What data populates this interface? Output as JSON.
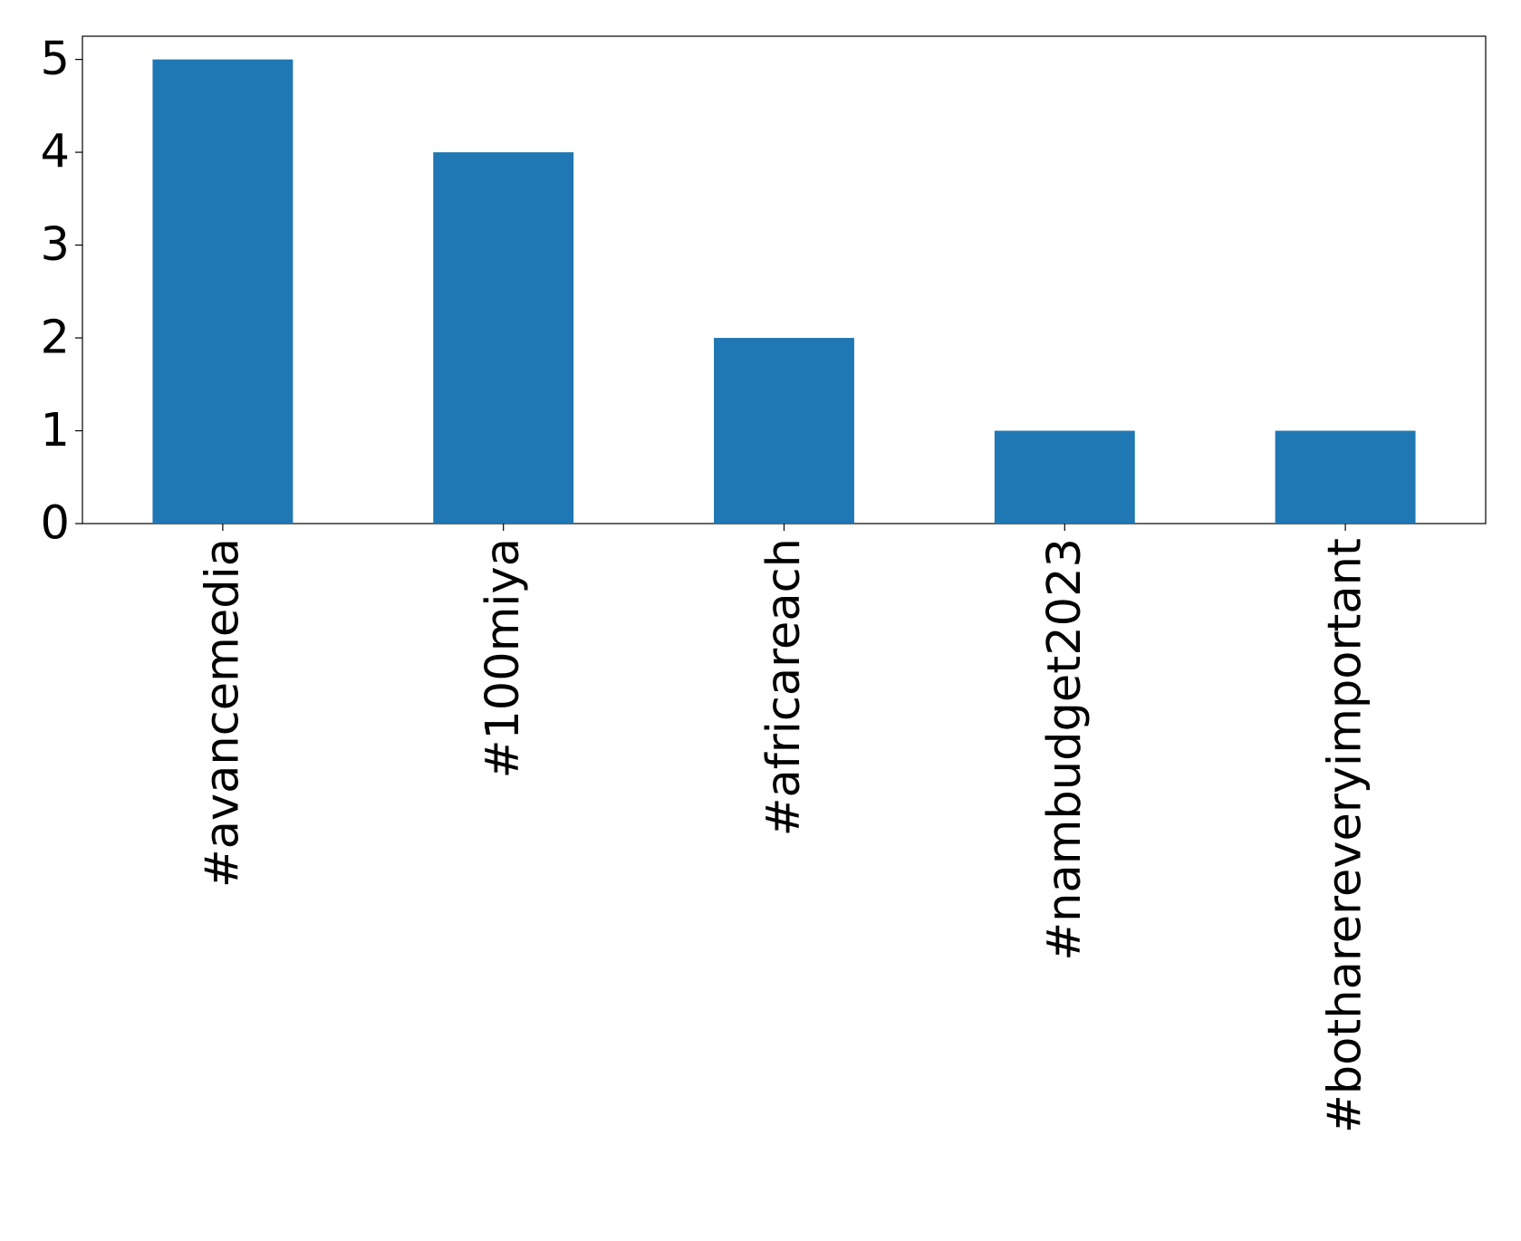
{
  "chart_data": {
    "type": "bar",
    "categories": [
      "#avancemedia",
      "#100miya",
      "#africareach",
      "#nambudget2023",
      "#botharereveryimportant"
    ],
    "values": [
      5,
      4,
      2,
      1,
      1
    ],
    "color": "#1f77b4",
    "ylim": [
      0,
      5.25
    ],
    "yticks": [
      0,
      1,
      2,
      3,
      4,
      5
    ]
  }
}
